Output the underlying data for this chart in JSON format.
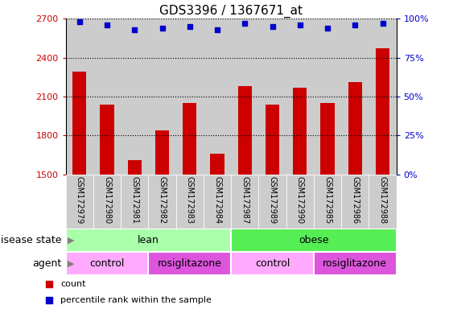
{
  "title": "GDS3396 / 1367671_at",
  "samples": [
    "GSM172979",
    "GSM172980",
    "GSM172981",
    "GSM172982",
    "GSM172983",
    "GSM172984",
    "GSM172987",
    "GSM172989",
    "GSM172990",
    "GSM172985",
    "GSM172986",
    "GSM172988"
  ],
  "bar_values": [
    2290,
    2040,
    1610,
    1840,
    2050,
    1660,
    2180,
    2040,
    2170,
    2050,
    2210,
    2470
  ],
  "percentile_values": [
    98,
    96,
    93,
    94,
    95,
    93,
    97,
    95,
    96,
    94,
    96,
    97
  ],
  "bar_color": "#cc0000",
  "dot_color": "#0000cc",
  "ylim_left": [
    1500,
    2700
  ],
  "yticks_left": [
    1500,
    1800,
    2100,
    2400,
    2700
  ],
  "ylim_right": [
    0,
    100
  ],
  "yticks_right": [
    0,
    25,
    50,
    75,
    100
  ],
  "yticklabels_right": [
    "0%",
    "25%",
    "50%",
    "75%",
    "100%"
  ],
  "disease_groups": [
    {
      "label": "lean",
      "start": 0,
      "end": 6,
      "color": "#aaffaa"
    },
    {
      "label": "obese",
      "start": 6,
      "end": 12,
      "color": "#55ee55"
    }
  ],
  "agent_groups": [
    {
      "label": "control",
      "start": 0,
      "end": 3,
      "color": "#ffaaff"
    },
    {
      "label": "rosiglitazone",
      "start": 3,
      "end": 6,
      "color": "#dd55dd"
    },
    {
      "label": "control",
      "start": 6,
      "end": 9,
      "color": "#ffaaff"
    },
    {
      "label": "rosiglitazone",
      "start": 9,
      "end": 12,
      "color": "#dd55dd"
    }
  ],
  "legend_items": [
    {
      "label": "count",
      "color": "#cc0000"
    },
    {
      "label": "percentile rank within the sample",
      "color": "#0000cc"
    }
  ],
  "left_tick_color": "#cc0000",
  "right_tick_color": "#0000cc",
  "col_bg_color": "#cccccc",
  "bar_width": 0.5,
  "tick_fontsize": 8,
  "label_fontsize": 9,
  "title_fontsize": 11
}
